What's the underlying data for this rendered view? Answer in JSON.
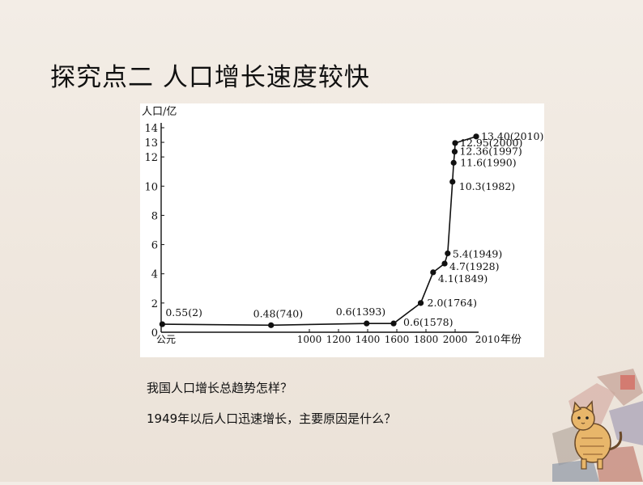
{
  "title": "探究点二  人口增长速度较快",
  "questions": [
    "我国人口增长总趋势怎样？",
    "1949年以后人口迅速增长，主要原因是什么？"
  ],
  "chart_data": {
    "type": "line",
    "ylabel": "人口/亿",
    "xlabel": "年份",
    "x_start_label": "公元",
    "x_tick_labels": [
      "1000",
      "1200",
      "1400",
      "1600",
      "1800",
      "2000",
      "2010"
    ],
    "y_ticks": [
      0,
      2,
      4,
      6,
      8,
      10,
      12,
      13,
      14
    ],
    "ylim": [
      0,
      14
    ],
    "points": [
      {
        "x": 2,
        "y": 0.55,
        "label": "0.55(2)"
      },
      {
        "x": 740,
        "y": 0.48,
        "label": "0.48(740)"
      },
      {
        "x": 1393,
        "y": 0.6,
        "label": "0.6(1393)"
      },
      {
        "x": 1578,
        "y": 0.6,
        "label": "0.6(1578)"
      },
      {
        "x": 1764,
        "y": 2.0,
        "label": "2.0(1764)"
      },
      {
        "x": 1849,
        "y": 4.1,
        "label": "4.1(1849)"
      },
      {
        "x": 1928,
        "y": 4.7,
        "label": "4.7(1928)"
      },
      {
        "x": 1949,
        "y": 5.4,
        "label": "5.4(1949)"
      },
      {
        "x": 1982,
        "y": 10.3,
        "label": "10.3(1982)"
      },
      {
        "x": 1990,
        "y": 11.6,
        "label": "11.6(1990)"
      },
      {
        "x": 1997,
        "y": 12.36,
        "label": "12.36(1997)"
      },
      {
        "x": 2000,
        "y": 12.95,
        "label": "12.95(2000)"
      },
      {
        "x": 2010,
        "y": 13.4,
        "label": "13.40(2010)"
      }
    ],
    "grid": false,
    "legend": "none"
  },
  "decoration": {
    "icon": "cat-icon"
  }
}
